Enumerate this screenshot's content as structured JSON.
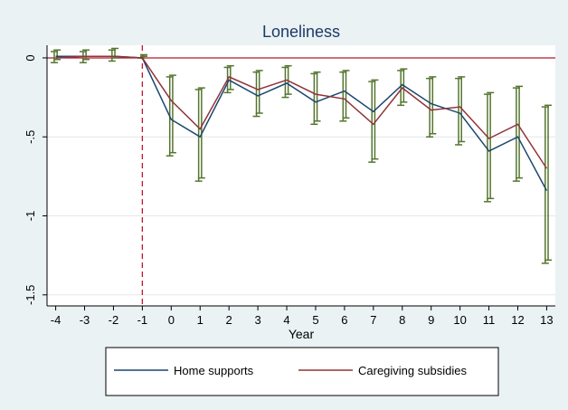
{
  "chart_data": {
    "type": "line",
    "title": "Loneliness",
    "xlabel": "Year",
    "ylabel": "",
    "x": [
      -4,
      -3,
      -2,
      -1,
      0,
      1,
      2,
      3,
      4,
      5,
      6,
      7,
      8,
      9,
      10,
      11,
      12,
      13
    ],
    "x_ticks": [
      "-4",
      "-3",
      "-2",
      "-1",
      "0",
      "1",
      "2",
      "3",
      "4",
      "5",
      "6",
      "7",
      "8",
      "9",
      "10",
      "11",
      "12",
      "13"
    ],
    "y_ticks": [
      "0",
      "-.5",
      "-1",
      "-1.5"
    ],
    "y_tick_values": [
      0,
      -0.5,
      -1,
      -1.5
    ],
    "xlim": [
      -4.3,
      13.3
    ],
    "ylim": [
      -1.57,
      0.08
    ],
    "reference_hline": 0,
    "reference_vline": -1,
    "grid": true,
    "legend_position": "bottom",
    "series": [
      {
        "name": "Home supports",
        "color": "#1a476f",
        "values": [
          0.01,
          0.01,
          0.01,
          0.0,
          -0.39,
          -0.5,
          -0.14,
          -0.24,
          -0.16,
          -0.28,
          -0.21,
          -0.34,
          -0.17,
          -0.29,
          -0.35,
          -0.59,
          -0.5,
          -0.84
        ]
      },
      {
        "name": "Caregiving subsidies",
        "color": "#90353b",
        "values": [
          0.0,
          0.01,
          0.01,
          0.0,
          -0.27,
          -0.45,
          -0.12,
          -0.2,
          -0.14,
          -0.23,
          -0.26,
          -0.42,
          -0.19,
          -0.33,
          -0.31,
          -0.51,
          -0.42,
          -0.7
        ]
      }
    ],
    "error_bars": {
      "color": "#55752f",
      "intervals": [
        [
          -0.03,
          0.04
        ],
        [
          -0.03,
          0.04
        ],
        [
          -0.02,
          0.05
        ],
        [
          0.0,
          0.0
        ],
        [
          -0.62,
          -0.12
        ],
        [
          -0.78,
          -0.2
        ],
        [
          -0.22,
          -0.06
        ],
        [
          -0.37,
          -0.09
        ],
        [
          -0.25,
          -0.06
        ],
        [
          -0.42,
          -0.1
        ],
        [
          -0.4,
          -0.09
        ],
        [
          -0.66,
          -0.15
        ],
        [
          -0.3,
          -0.08
        ],
        [
          -0.5,
          -0.13
        ],
        [
          -0.55,
          -0.13
        ],
        [
          -0.91,
          -0.23
        ],
        [
          -0.78,
          -0.19
        ],
        [
          -1.3,
          -0.31
        ]
      ]
    }
  }
}
